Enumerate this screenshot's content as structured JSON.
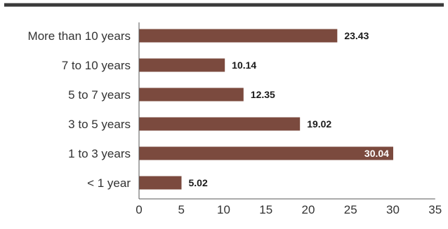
{
  "colors": {
    "bar": "#7b4a3e",
    "top_rule": "#3a3a3a",
    "axis": "#555555",
    "label_outside": "#1a1a1a",
    "label_inside": "#ffffff"
  },
  "chart_data": {
    "type": "bar",
    "orientation": "horizontal",
    "categories": [
      "More than 10 years",
      "7 to 10 years",
      "5 to 7 years",
      "3 to 5 years",
      "1 to 3 years",
      "< 1 year"
    ],
    "values": [
      23.43,
      10.14,
      12.35,
      19.02,
      30.04,
      5.02
    ],
    "value_labels": [
      "23.43",
      "10.14",
      "12.35",
      "19.02",
      "30.04",
      "5.02"
    ],
    "xlim": [
      0,
      35
    ],
    "xticks": [
      0,
      5,
      10,
      15,
      20,
      25,
      30,
      35
    ],
    "xtick_labels": [
      "0",
      "5",
      "10",
      "15",
      "20",
      "25",
      "30",
      "35"
    ],
    "title": "",
    "xlabel": "",
    "ylabel": "",
    "grid": false,
    "legend": "none"
  }
}
